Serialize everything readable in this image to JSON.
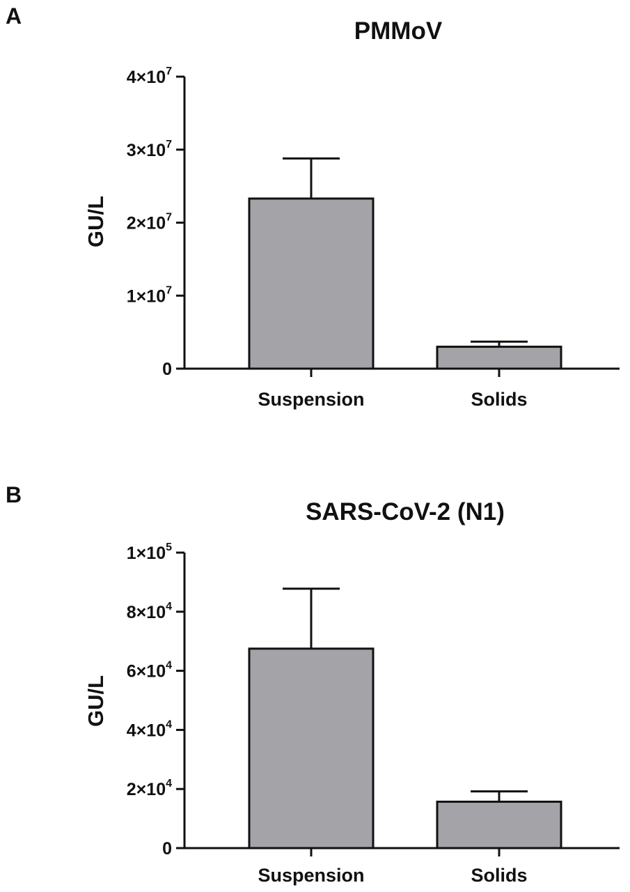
{
  "chart_data": [
    {
      "panel": "A",
      "type": "bar",
      "title": "PMMoV",
      "ylabel": "GU/L",
      "xlabel": "",
      "categories": [
        "Suspension",
        "Solids"
      ],
      "values": [
        23300000,
        3000000
      ],
      "error_upper": [
        28800000,
        3700000
      ],
      "ylim": [
        0,
        40000000
      ],
      "yticks": [
        {
          "value": 0,
          "mantissa": "0",
          "exponent": ""
        },
        {
          "value": 10000000,
          "mantissa": "1×10",
          "exponent": "7"
        },
        {
          "value": 20000000,
          "mantissa": "2×10",
          "exponent": "7"
        },
        {
          "value": 30000000,
          "mantissa": "3×10",
          "exponent": "7"
        },
        {
          "value": 40000000,
          "mantissa": "4×10",
          "exponent": "7"
        }
      ],
      "bar_color": "#a4a3a8",
      "grid": false,
      "legend": "none"
    },
    {
      "panel": "B",
      "type": "bar",
      "title": "SARS-CoV-2 (N1)",
      "ylabel": "GU/L",
      "xlabel": "",
      "categories": [
        "Suspension",
        "Solids"
      ],
      "values": [
        67500,
        15700
      ],
      "error_upper": [
        87800,
        19200
      ],
      "ylim": [
        0,
        100000
      ],
      "yticks": [
        {
          "value": 0,
          "mantissa": "0",
          "exponent": ""
        },
        {
          "value": 20000,
          "mantissa": "2×10",
          "exponent": "4"
        },
        {
          "value": 40000,
          "mantissa": "4×10",
          "exponent": "4"
        },
        {
          "value": 60000,
          "mantissa": "6×10",
          "exponent": "4"
        },
        {
          "value": 80000,
          "mantissa": "8×10",
          "exponent": "4"
        },
        {
          "value": 100000,
          "mantissa": "1×10",
          "exponent": "5"
        }
      ],
      "bar_color": "#a4a3a8",
      "grid": false,
      "legend": "none"
    }
  ]
}
